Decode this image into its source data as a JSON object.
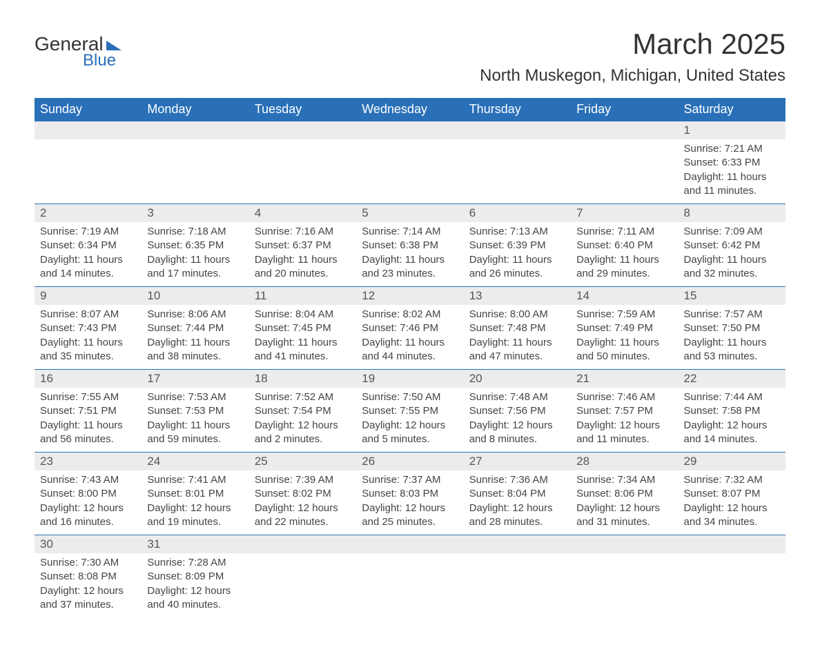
{
  "logo": {
    "text_general": "General",
    "text_blue": "Blue",
    "brand_color": "#2a70b8"
  },
  "title": "March 2025",
  "location": "North Muskegon, Michigan, United States",
  "weekdays": [
    "Sunday",
    "Monday",
    "Tuesday",
    "Wednesday",
    "Thursday",
    "Friday",
    "Saturday"
  ],
  "colors": {
    "header_bg": "#2a70b8",
    "header_text": "#ffffff",
    "daynum_bg": "#ececec",
    "border": "#2a70b8",
    "text": "#333333"
  },
  "weeks": [
    [
      null,
      null,
      null,
      null,
      null,
      null,
      {
        "n": "1",
        "sunrise": "7:21 AM",
        "sunset": "6:33 PM",
        "day_h": "11",
        "day_m": "11"
      }
    ],
    [
      {
        "n": "2",
        "sunrise": "7:19 AM",
        "sunset": "6:34 PM",
        "day_h": "11",
        "day_m": "14"
      },
      {
        "n": "3",
        "sunrise": "7:18 AM",
        "sunset": "6:35 PM",
        "day_h": "11",
        "day_m": "17"
      },
      {
        "n": "4",
        "sunrise": "7:16 AM",
        "sunset": "6:37 PM",
        "day_h": "11",
        "day_m": "20"
      },
      {
        "n": "5",
        "sunrise": "7:14 AM",
        "sunset": "6:38 PM",
        "day_h": "11",
        "day_m": "23"
      },
      {
        "n": "6",
        "sunrise": "7:13 AM",
        "sunset": "6:39 PM",
        "day_h": "11",
        "day_m": "26"
      },
      {
        "n": "7",
        "sunrise": "7:11 AM",
        "sunset": "6:40 PM",
        "day_h": "11",
        "day_m": "29"
      },
      {
        "n": "8",
        "sunrise": "7:09 AM",
        "sunset": "6:42 PM",
        "day_h": "11",
        "day_m": "32"
      }
    ],
    [
      {
        "n": "9",
        "sunrise": "8:07 AM",
        "sunset": "7:43 PM",
        "day_h": "11",
        "day_m": "35"
      },
      {
        "n": "10",
        "sunrise": "8:06 AM",
        "sunset": "7:44 PM",
        "day_h": "11",
        "day_m": "38"
      },
      {
        "n": "11",
        "sunrise": "8:04 AM",
        "sunset": "7:45 PM",
        "day_h": "11",
        "day_m": "41"
      },
      {
        "n": "12",
        "sunrise": "8:02 AM",
        "sunset": "7:46 PM",
        "day_h": "11",
        "day_m": "44"
      },
      {
        "n": "13",
        "sunrise": "8:00 AM",
        "sunset": "7:48 PM",
        "day_h": "11",
        "day_m": "47"
      },
      {
        "n": "14",
        "sunrise": "7:59 AM",
        "sunset": "7:49 PM",
        "day_h": "11",
        "day_m": "50"
      },
      {
        "n": "15",
        "sunrise": "7:57 AM",
        "sunset": "7:50 PM",
        "day_h": "11",
        "day_m": "53"
      }
    ],
    [
      {
        "n": "16",
        "sunrise": "7:55 AM",
        "sunset": "7:51 PM",
        "day_h": "11",
        "day_m": "56"
      },
      {
        "n": "17",
        "sunrise": "7:53 AM",
        "sunset": "7:53 PM",
        "day_h": "11",
        "day_m": "59"
      },
      {
        "n": "18",
        "sunrise": "7:52 AM",
        "sunset": "7:54 PM",
        "day_h": "12",
        "day_m": "2"
      },
      {
        "n": "19",
        "sunrise": "7:50 AM",
        "sunset": "7:55 PM",
        "day_h": "12",
        "day_m": "5"
      },
      {
        "n": "20",
        "sunrise": "7:48 AM",
        "sunset": "7:56 PM",
        "day_h": "12",
        "day_m": "8"
      },
      {
        "n": "21",
        "sunrise": "7:46 AM",
        "sunset": "7:57 PM",
        "day_h": "12",
        "day_m": "11"
      },
      {
        "n": "22",
        "sunrise": "7:44 AM",
        "sunset": "7:58 PM",
        "day_h": "12",
        "day_m": "14"
      }
    ],
    [
      {
        "n": "23",
        "sunrise": "7:43 AM",
        "sunset": "8:00 PM",
        "day_h": "12",
        "day_m": "16"
      },
      {
        "n": "24",
        "sunrise": "7:41 AM",
        "sunset": "8:01 PM",
        "day_h": "12",
        "day_m": "19"
      },
      {
        "n": "25",
        "sunrise": "7:39 AM",
        "sunset": "8:02 PM",
        "day_h": "12",
        "day_m": "22"
      },
      {
        "n": "26",
        "sunrise": "7:37 AM",
        "sunset": "8:03 PM",
        "day_h": "12",
        "day_m": "25"
      },
      {
        "n": "27",
        "sunrise": "7:36 AM",
        "sunset": "8:04 PM",
        "day_h": "12",
        "day_m": "28"
      },
      {
        "n": "28",
        "sunrise": "7:34 AM",
        "sunset": "8:06 PM",
        "day_h": "12",
        "day_m": "31"
      },
      {
        "n": "29",
        "sunrise": "7:32 AM",
        "sunset": "8:07 PM",
        "day_h": "12",
        "day_m": "34"
      }
    ],
    [
      {
        "n": "30",
        "sunrise": "7:30 AM",
        "sunset": "8:08 PM",
        "day_h": "12",
        "day_m": "37"
      },
      {
        "n": "31",
        "sunrise": "7:28 AM",
        "sunset": "8:09 PM",
        "day_h": "12",
        "day_m": "40"
      },
      null,
      null,
      null,
      null,
      null
    ]
  ],
  "labels": {
    "sunrise_prefix": "Sunrise: ",
    "sunset_prefix": "Sunset: ",
    "daylight_prefix": "Daylight: ",
    "hours_word": " hours and ",
    "minutes_word": " minutes."
  }
}
